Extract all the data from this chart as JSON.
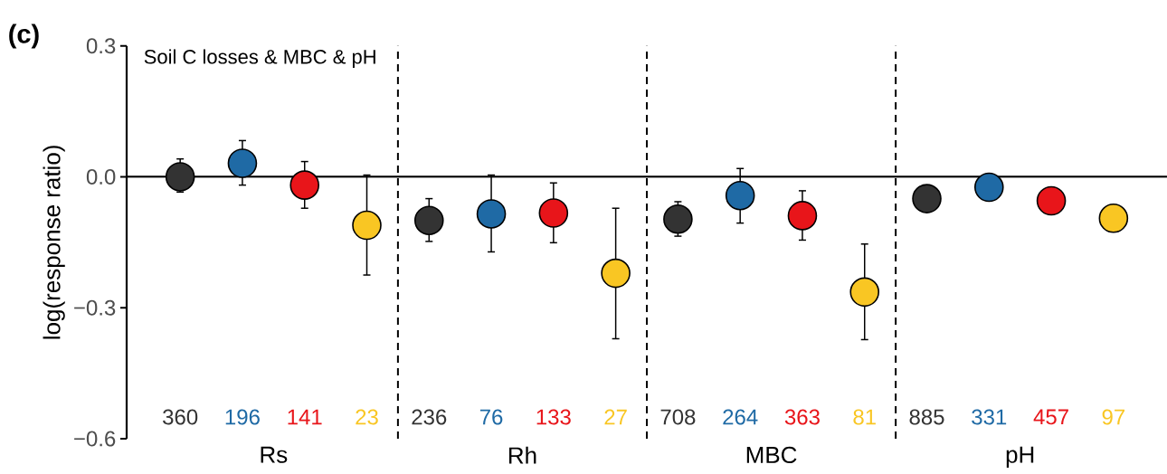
{
  "chart_data": {
    "type": "scatter",
    "title": "Soil C losses & MBC & pH",
    "ylabel": "log(response ratio)",
    "annotations": [
      "(c)",
      "360",
      "196",
      "141",
      "23",
      "236",
      "76",
      "133",
      "27",
      "708",
      "264",
      "363",
      "81",
      "885",
      "331",
      "457",
      "97"
    ],
    "categories": [
      "Rs",
      "Rh",
      "MBC",
      "pH"
    ],
    "series": [
      {
        "color": "#333333",
        "values": [
          0.0,
          -0.1,
          -0.097,
          -0.05
        ],
        "errors": [
          [
            -0.035,
            0.041
          ],
          [
            -0.148,
            -0.05
          ],
          [
            -0.136,
            -0.057
          ],
          null
        ]
      },
      {
        "color": "#1f6aa5",
        "values": [
          0.031,
          -0.085,
          -0.043,
          -0.024
        ],
        "errors": [
          [
            -0.019,
            0.083
          ],
          [
            -0.172,
            0.004
          ],
          [
            -0.106,
            0.019
          ],
          null
        ]
      },
      {
        "color": "#e8151a",
        "values": [
          -0.019,
          -0.083,
          -0.089,
          -0.055
        ],
        "errors": [
          [
            -0.072,
            0.035
          ],
          [
            -0.151,
            -0.014
          ],
          [
            -0.145,
            -0.032
          ],
          null
        ]
      },
      {
        "color": "#f9c623",
        "values": [
          -0.111,
          -0.221,
          -0.264,
          -0.095
        ],
        "errors": [
          [
            -0.225,
            0.004
          ],
          [
            -0.371,
            -0.072
          ],
          [
            -0.373,
            -0.154
          ],
          null
        ]
      }
    ],
    "ylim": [
      -0.6,
      0.3
    ],
    "yticks": [
      {
        "value": -0.6,
        "label": "−0.6"
      },
      {
        "value": -0.3,
        "label": "−0.3"
      },
      {
        "value": 0,
        "label": "0.0"
      },
      0.3
    ],
    "ref_lines": [
      {
        "axis": "y",
        "value": 0,
        "line_style": "solid"
      }
    ],
    "marker": "circle"
  }
}
